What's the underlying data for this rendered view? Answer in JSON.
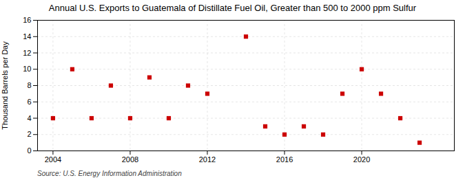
{
  "chart_data": {
    "type": "scatter",
    "title": "Annual U.S. Exports to Guatemala of Distillate Fuel Oil, Greater than 500 to 2000 ppm Sulfur",
    "ylabel": "Thousand Barrels per Day",
    "source": "Source: U.S. Energy Information Administration",
    "x": [
      2004,
      2005,
      2006,
      2007,
      2008,
      2009,
      2010,
      2011,
      2012,
      2014,
      2015,
      2016,
      2017,
      2018,
      2019,
      2020,
      2021,
      2022,
      2023
    ],
    "values": [
      4,
      10,
      4,
      8,
      4,
      9,
      4,
      8,
      7,
      14,
      3,
      2,
      3,
      2,
      7,
      10,
      7,
      4,
      1
    ],
    "color": "#cc0000",
    "marker": "square",
    "xlim": [
      2003.2,
      2024.8
    ],
    "ylim": [
      0,
      16
    ],
    "xticks": [
      2004,
      2008,
      2012,
      2016,
      2020
    ],
    "yticks": [
      0,
      2,
      4,
      6,
      8,
      10,
      12,
      14,
      16
    ],
    "grid": true
  }
}
